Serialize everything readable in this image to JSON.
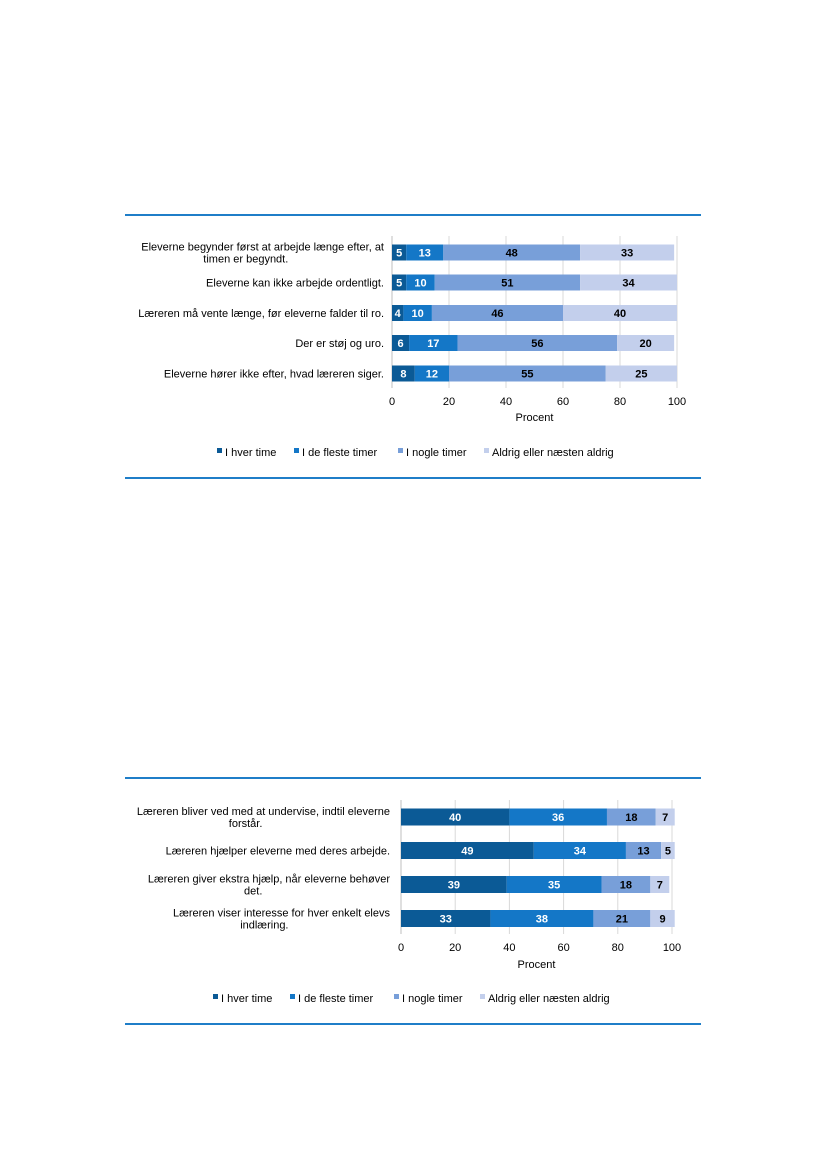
{
  "colors": {
    "rule": "#1F7EC8",
    "series": [
      "#0B5A96",
      "#1477C7",
      "#789FD9",
      "#C3CFEC"
    ],
    "label_dark": "#000000",
    "label_light": "#ffffff",
    "gridline": "#d9d9d9"
  },
  "chart_data": [
    {
      "type": "bar",
      "orientation": "horizontal",
      "stacked": true,
      "categories": [
        "Eleverne begynder først at arbejde længe efter, at timen er begyndt.",
        "Eleverne kan ikke arbejde ordentligt.",
        "Læreren må vente længe, før eleverne falder til ro.",
        "Der er støj og uro.",
        "Eleverne hører ikke efter, hvad læreren siger."
      ],
      "series": [
        {
          "name": "I hver time",
          "values": [
            5,
            5,
            4,
            6,
            8
          ]
        },
        {
          "name": "I de fleste timer",
          "values": [
            13,
            10,
            10,
            17,
            12
          ]
        },
        {
          "name": "I nogle timer",
          "values": [
            48,
            51,
            46,
            56,
            55
          ]
        },
        {
          "name": "Aldrig eller næsten aldrig",
          "values": [
            33,
            34,
            40,
            20,
            25
          ]
        }
      ],
      "xlabel": "Procent",
      "xlim": [
        0,
        100
      ],
      "xticks": [
        0,
        20,
        40,
        60,
        80,
        100
      ],
      "grid": true,
      "legend": "bottom",
      "label_colors": [
        "#ffffff",
        "#ffffff",
        "#000000",
        "#000000"
      ]
    },
    {
      "type": "bar",
      "orientation": "horizontal",
      "stacked": true,
      "categories": [
        "Læreren bliver ved med at undervise, indtil eleverne forstår.",
        "Læreren hjælper eleverne med deres arbejde.",
        "Læreren giver ekstra hjælp, når eleverne behøver det.",
        "Læreren viser interesse for hver enkelt elevs indlæring."
      ],
      "series": [
        {
          "name": "I hver time",
          "values": [
            40,
            49,
            39,
            33
          ]
        },
        {
          "name": "I de fleste timer",
          "values": [
            36,
            34,
            35,
            38
          ]
        },
        {
          "name": "I nogle timer",
          "values": [
            18,
            13,
            18,
            21
          ]
        },
        {
          "name": "Aldrig eller næsten aldrig",
          "values": [
            7,
            5,
            7,
            9
          ]
        }
      ],
      "xlabel": "Procent",
      "xlim": [
        0,
        100
      ],
      "xticks": [
        0,
        20,
        40,
        60,
        80,
        100
      ],
      "grid": true,
      "legend": "bottom",
      "label_colors": [
        "#ffffff",
        "#ffffff",
        "#000000",
        "#000000"
      ]
    }
  ]
}
